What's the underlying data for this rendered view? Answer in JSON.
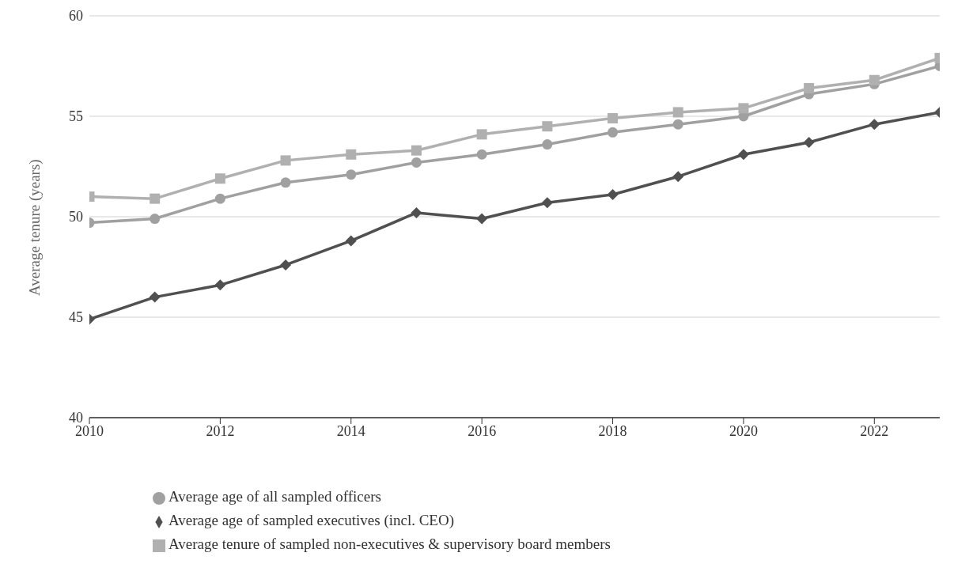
{
  "chart_data": {
    "type": "line",
    "ylabel": "Average tenure (years)",
    "x": [
      2010,
      2011,
      2012,
      2013,
      2014,
      2015,
      2016,
      2017,
      2018,
      2019,
      2020,
      2021,
      2022,
      2023
    ],
    "series": [
      {
        "name": "Average age of all sampled officers",
        "color": "#a0a0a0",
        "marker": "circle",
        "values": [
          49.7,
          49.9,
          50.9,
          51.7,
          52.1,
          52.7,
          53.1,
          53.6,
          54.2,
          54.6,
          55.0,
          56.1,
          56.6,
          57.5
        ]
      },
      {
        "name": "Average age of sampled executives (incl. CEO)",
        "color": "#505050",
        "marker": "diamond",
        "values": [
          44.9,
          46.0,
          46.6,
          47.6,
          48.8,
          50.2,
          49.9,
          50.7,
          51.1,
          52.0,
          53.1,
          53.7,
          54.6,
          55.2
        ]
      },
      {
        "name": "Average tenure of sampled non-executives & supervisory board members",
        "color": "#b0b0b0",
        "marker": "square",
        "values": [
          51.0,
          50.9,
          51.9,
          52.8,
          53.1,
          53.3,
          54.1,
          54.5,
          54.9,
          55.2,
          55.4,
          56.4,
          56.8,
          57.9
        ]
      }
    ],
    "xlim": [
      2010,
      2023
    ],
    "xticks": [
      2010,
      2012,
      2014,
      2016,
      2018,
      2020,
      2022
    ],
    "ylim": [
      40,
      60
    ],
    "yticks": [
      40,
      45,
      50,
      55,
      60
    ],
    "grid": "y",
    "legend": "bottom",
    "line_style": "solid"
  }
}
